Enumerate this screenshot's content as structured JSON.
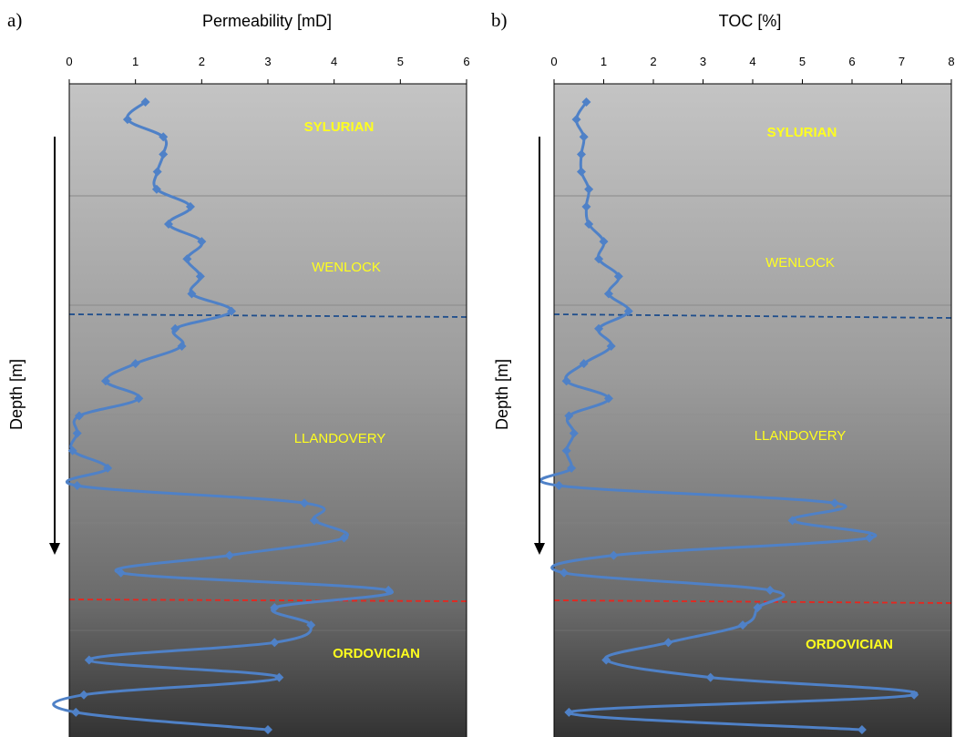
{
  "chart_data": [
    {
      "type": "line",
      "panel_label": "a)",
      "title": "",
      "xlabel": "Permeability [mD]",
      "ylabel": "Depth [m]",
      "xlim": [
        0,
        6
      ],
      "xticks": [
        "0",
        "1",
        "2",
        "3",
        "4",
        "5",
        "6"
      ],
      "axis_position": "top",
      "grid": false,
      "legend": "none",
      "depth_order": "top-to-bottom",
      "series": [
        {
          "color": "#4f81c7",
          "marker": "diamond",
          "values": [
            1.15,
            0.88,
            1.42,
            1.42,
            1.33,
            1.32,
            1.83,
            1.5,
            2.0,
            1.78,
            1.98,
            1.85,
            2.45,
            1.6,
            1.7,
            1.0,
            0.55,
            1.05,
            0.15,
            0.12,
            0.05,
            0.58,
            0.12,
            3.55,
            3.7,
            4.15,
            2.42,
            0.78,
            4.82,
            3.1,
            3.65,
            3.1,
            0.3,
            3.17,
            0.22,
            0.1,
            3.0
          ]
        }
      ],
      "annotations": [
        {
          "text": "SYLURIAN",
          "bold": true
        },
        {
          "text": "WENLOCK",
          "bold": false
        },
        {
          "text": "LLANDOVERY",
          "bold": false
        },
        {
          "text": "ORDOVICIAN",
          "bold": true
        }
      ]
    },
    {
      "type": "line",
      "panel_label": "b)",
      "title": "",
      "xlabel": "TOC [%]",
      "ylabel": "Depth [m]",
      "xlim": [
        0,
        8
      ],
      "xticks": [
        "0",
        "1",
        "2",
        "3",
        "4",
        "5",
        "6",
        "7",
        "8"
      ],
      "axis_position": "top",
      "grid": false,
      "legend": "none",
      "depth_order": "top-to-bottom",
      "series": [
        {
          "color": "#4f81c7",
          "marker": "diamond",
          "values": [
            0.65,
            0.45,
            0.6,
            0.55,
            0.55,
            0.7,
            0.65,
            0.7,
            1.0,
            0.9,
            1.3,
            1.1,
            1.5,
            0.9,
            1.15,
            0.6,
            0.25,
            1.1,
            0.3,
            0.4,
            0.25,
            0.35,
            0.1,
            5.65,
            4.8,
            6.35,
            1.2,
            0.2,
            4.35,
            4.1,
            3.8,
            2.3,
            1.05,
            3.15,
            7.25,
            0.3,
            6.2
          ]
        }
      ],
      "annotations": [
        {
          "text": "SYLURIAN",
          "bold": true
        },
        {
          "text": "WENLOCK",
          "bold": false
        },
        {
          "text": "LLANDOVERY",
          "bold": false
        },
        {
          "text": "ORDOVICIAN",
          "bold": true
        }
      ]
    }
  ]
}
